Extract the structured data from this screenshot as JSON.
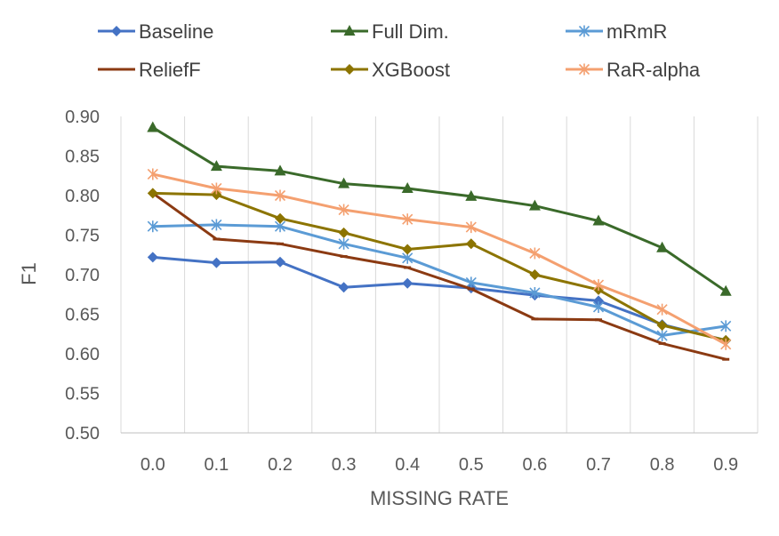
{
  "chart_data": {
    "type": "line",
    "xlabel": "MISSING RATE",
    "ylabel": "F1",
    "categories": [
      "0.0",
      "0.1",
      "0.2",
      "0.3",
      "0.4",
      "0.5",
      "0.6",
      "0.7",
      "0.8",
      "0.9"
    ],
    "ylim": [
      0.5,
      0.9
    ],
    "yticks": [
      "0.50",
      "0.55",
      "0.60",
      "0.65",
      "0.70",
      "0.75",
      "0.80",
      "0.85",
      "0.90"
    ],
    "grid": "vertical",
    "legend_position": "top",
    "series": [
      {
        "name": "Baseline",
        "color": "#4472C4",
        "marker": "diamond",
        "values": [
          0.722,
          0.715,
          0.716,
          0.684,
          0.689,
          0.683,
          0.674,
          0.667,
          0.637,
          0.617
        ]
      },
      {
        "name": "Full Dim.",
        "color": "#3A6A2A",
        "marker": "triangle",
        "values": [
          0.886,
          0.837,
          0.831,
          0.815,
          0.809,
          0.799,
          0.787,
          0.768,
          0.734,
          0.679
        ]
      },
      {
        "name": "mRmR",
        "color": "#5B9BD5",
        "marker": "asterisk",
        "values": [
          0.761,
          0.763,
          0.761,
          0.739,
          0.721,
          0.69,
          0.677,
          0.659,
          0.623,
          0.635
        ]
      },
      {
        "name": "ReliefF",
        "color": "#8B3A12",
        "marker": "dash",
        "values": [
          0.803,
          0.745,
          0.739,
          0.723,
          0.709,
          0.682,
          0.644,
          0.643,
          0.613,
          0.593
        ]
      },
      {
        "name": "XGBoost",
        "color": "#8C7400",
        "marker": "diamond",
        "values": [
          0.803,
          0.801,
          0.771,
          0.753,
          0.732,
          0.739,
          0.7,
          0.681,
          0.636,
          0.617
        ]
      },
      {
        "name": "RaR-alpha",
        "color": "#F4A070",
        "marker": "asterisk",
        "values": [
          0.827,
          0.809,
          0.8,
          0.782,
          0.77,
          0.76,
          0.727,
          0.687,
          0.656,
          0.612
        ]
      }
    ]
  }
}
